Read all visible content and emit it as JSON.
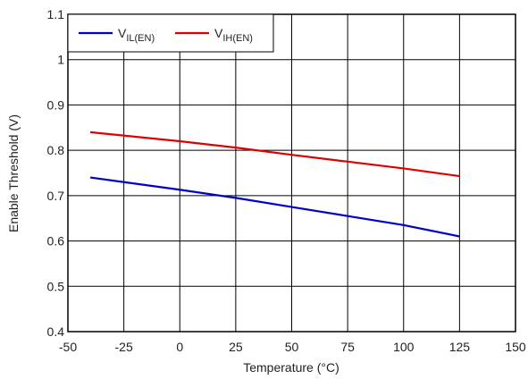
{
  "chart_data": {
    "type": "line",
    "xlabel": "Temperature (°C)",
    "ylabel": "Enable Threshold (V)",
    "xlim": [
      -50,
      150
    ],
    "xticks": [
      -50,
      -25,
      0,
      25,
      50,
      75,
      100,
      125,
      150
    ],
    "ylim": [
      0.4,
      1.1
    ],
    "yticks": [
      0.4,
      0.5,
      0.6,
      0.7,
      0.8,
      0.9,
      1,
      1.1
    ],
    "grid": true,
    "legend": "upper left",
    "x": [
      -40,
      0,
      25,
      50,
      75,
      100,
      125
    ],
    "series": [
      {
        "name": "V",
        "subscript": "IL(EN)",
        "color": "#0000cc",
        "values": [
          0.74,
          0.713,
          0.695,
          0.675,
          0.655,
          0.635,
          0.61
        ]
      },
      {
        "name": "V",
        "subscript": "IH(EN)",
        "color": "#e00000",
        "values": [
          0.84,
          0.82,
          0.806,
          0.79,
          0.775,
          0.76,
          0.743
        ]
      }
    ]
  }
}
